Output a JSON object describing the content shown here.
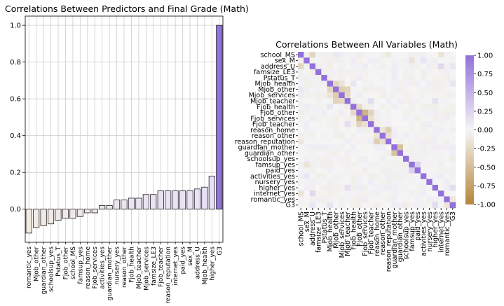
{
  "chart_data": [
    {
      "type": "bar",
      "title": "Correlations Between Predictors and Final Grade (Math)",
      "xlabel": "",
      "ylabel": "",
      "ylim": [
        -0.18,
        1.05
      ],
      "yticks": [
        "0.0",
        "0.2",
        "0.4",
        "0.6",
        "0.8",
        "1.0"
      ],
      "grid": true,
      "categories": [
        "romantic_yes",
        "Mjob_other",
        "guardian_other",
        "schoolsup_yes",
        "Pstatus_T",
        "Fjob_other",
        "school_MS",
        "famsup_yes",
        "reason_home",
        "Fjob_services",
        "activities_yes",
        "guardian_mother",
        "nursery_yes",
        "reason_other",
        "Fjob_health",
        "Mjob_teacher",
        "Mjob_services",
        "famsize_LE3",
        "Fjob_teacher",
        "reason_reputation",
        "internet_yes",
        "paid_yes",
        "sex_M",
        "address_U",
        "Mjob_health",
        "higher_yes",
        "G3"
      ],
      "values": [
        -0.13,
        -0.1,
        -0.09,
        -0.08,
        -0.06,
        -0.05,
        -0.05,
        -0.04,
        -0.02,
        -0.02,
        0.02,
        0.02,
        0.05,
        0.05,
        0.06,
        0.06,
        0.08,
        0.08,
        0.1,
        0.1,
        0.1,
        0.1,
        0.1,
        0.11,
        0.12,
        0.18,
        1.0
      ],
      "colors": {
        "bar_low": "#f3ebe2",
        "bar_high": "#e6defa",
        "bar_peak": "#9372df",
        "edge": "#222222"
      }
    },
    {
      "type": "heatmap",
      "title": "Correlations Between All Variables (Math)",
      "labels": [
        "school_MS",
        "sex_M",
        "address_U",
        "famsize_LE3",
        "Pstatus_T",
        "Mjob_health",
        "Mjob_other",
        "Mjob_services",
        "Mjob_teacher",
        "Fjob_health",
        "Fjob_other",
        "Fjob_services",
        "Fjob_teacher",
        "reason_home",
        "reason_other",
        "reason_reputation",
        "guardian_mother",
        "guardian_other",
        "schoolsup_yes",
        "famsup_yes",
        "paid_yes",
        "activities_yes",
        "nursery_yes",
        "higher_yes",
        "internet_yes",
        "romantic_yes",
        "G3"
      ],
      "colorbar": {
        "ticks": [
          "1.00",
          "0.75",
          "0.50",
          "0.25",
          "0.00",
          "-0.25",
          "-0.50",
          "-0.75",
          "-1.00"
        ],
        "range": [
          -1,
          1
        ]
      },
      "colors": {
        "positive": "#9370db",
        "zero": "#f5f5f5",
        "negative": "#b5853a"
      },
      "strong_pairs": [
        {
          "a": "Mjob_health",
          "b": "Mjob_other",
          "r": -0.28
        },
        {
          "a": "Mjob_other",
          "b": "Mjob_services",
          "r": -0.35
        },
        {
          "a": "Mjob_other",
          "b": "Mjob_teacher",
          "r": -0.3
        },
        {
          "a": "Mjob_services",
          "b": "Mjob_teacher",
          "r": -0.25
        },
        {
          "a": "Mjob_health",
          "b": "Mjob_services",
          "r": -0.15
        },
        {
          "a": "Fjob_other",
          "b": "Fjob_services",
          "r": -0.6
        },
        {
          "a": "Fjob_health",
          "b": "Fjob_other",
          "r": -0.25
        },
        {
          "a": "Fjob_other",
          "b": "Fjob_teacher",
          "r": -0.3
        },
        {
          "a": "Fjob_services",
          "b": "Fjob_teacher",
          "r": -0.2
        },
        {
          "a": "reason_home",
          "b": "reason_reputation",
          "r": -0.35
        },
        {
          "a": "reason_other",
          "b": "reason_reputation",
          "r": -0.2
        },
        {
          "a": "reason_home",
          "b": "reason_other",
          "r": -0.15
        },
        {
          "a": "guardian_mother",
          "b": "guardian_other",
          "r": -0.45
        },
        {
          "a": "school_MS",
          "b": "address_U",
          "r": -0.28
        },
        {
          "a": "school_MS",
          "b": "internet_yes",
          "r": -0.15
        },
        {
          "a": "address_U",
          "b": "internet_yes",
          "r": 0.22
        },
        {
          "a": "famsup_yes",
          "b": "paid_yes",
          "r": 0.28
        },
        {
          "a": "Mjob_health",
          "b": "Fjob_health",
          "r": 0.12
        },
        {
          "a": "Mjob_teacher",
          "b": "Fjob_teacher",
          "r": 0.18
        },
        {
          "a": "Mjob_teacher",
          "b": "higher_yes",
          "r": 0.15
        },
        {
          "a": "sex_M",
          "b": "famsup_yes",
          "r": -0.15
        },
        {
          "a": "sex_M",
          "b": "activities_yes",
          "r": 0.12
        },
        {
          "a": "higher_yes",
          "b": "G3",
          "r": 0.18
        },
        {
          "a": "address_U",
          "b": "G3",
          "r": 0.11
        },
        {
          "a": "Mjob_health",
          "b": "G3",
          "r": 0.12
        },
        {
          "a": "romantic_yes",
          "b": "G3",
          "r": -0.13
        },
        {
          "a": "schoolsup_yes",
          "b": "G3",
          "r": -0.08
        },
        {
          "a": "school_MS",
          "b": "Mjob_other",
          "r": 0.1
        },
        {
          "a": "school_MS",
          "b": "reason_reputation",
          "r": -0.12
        }
      ]
    }
  ]
}
